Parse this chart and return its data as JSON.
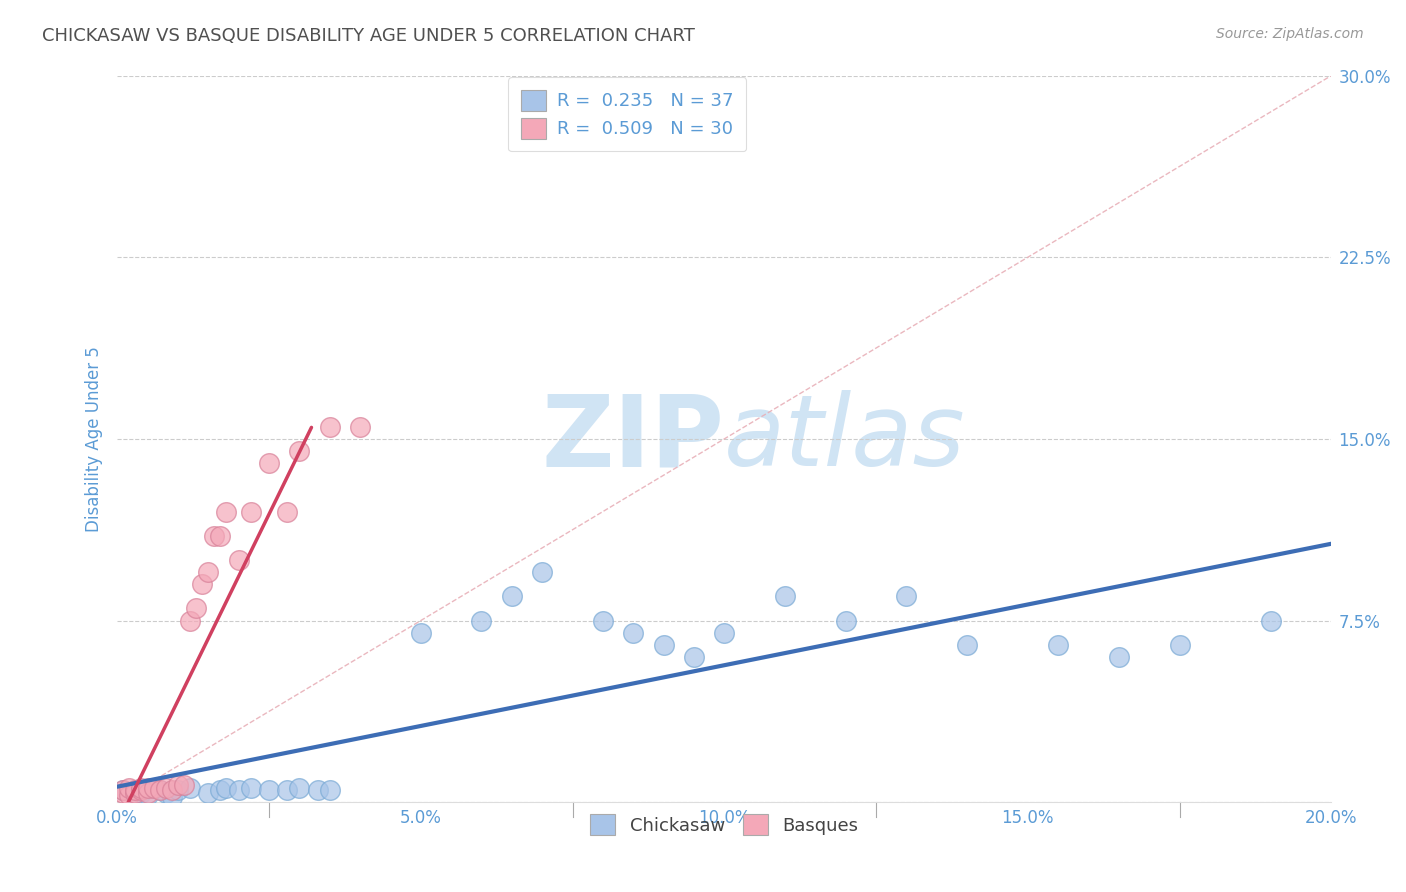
{
  "title": "CHICKASAW VS BASQUE DISABILITY AGE UNDER 5 CORRELATION CHART",
  "source_text": "Source: ZipAtlas.com",
  "ylabel": "Disability Age Under 5",
  "xlim": [
    0.0,
    0.2
  ],
  "ylim": [
    0.0,
    0.3
  ],
  "xticks": [
    0.0,
    0.05,
    0.1,
    0.15,
    0.2
  ],
  "xtick_labels": [
    "0.0%",
    "5.0%",
    "10.0%",
    "15.0%",
    "20.0%"
  ],
  "yticks": [
    0.0,
    0.075,
    0.15,
    0.225,
    0.3
  ],
  "ytick_labels": [
    "",
    "7.5%",
    "15.0%",
    "22.5%",
    "30.0%"
  ],
  "chickasaw_R": 0.235,
  "chickasaw_N": 37,
  "basques_R": 0.509,
  "basques_N": 30,
  "chickasaw_color": "#a8c4e8",
  "basques_color": "#f4a8b8",
  "trendline_chickasaw_color": "#3d6db5",
  "trendline_basques_color": "#d04060",
  "diag_line_color": "#e8b0b8",
  "background_color": "#ffffff",
  "grid_color": "#cccccc",
  "title_color": "#505050",
  "axis_label_color": "#5b9bd5",
  "tick_label_color": "#5b9bd5",
  "legend_text_color": "#5b9bd5",
  "watermark_color": "#d0e4f4",
  "chickasaw_x": [
    0.001,
    0.003,
    0.004,
    0.005,
    0.006,
    0.007,
    0.008,
    0.009,
    0.01,
    0.012,
    0.015,
    0.017,
    0.018,
    0.02,
    0.022,
    0.025,
    0.028,
    0.03,
    0.033,
    0.035,
    0.05,
    0.06,
    0.065,
    0.07,
    0.08,
    0.085,
    0.09,
    0.095,
    0.1,
    0.11,
    0.12,
    0.13,
    0.14,
    0.155,
    0.165,
    0.175,
    0.19
  ],
  "chickasaw_y": [
    0.005,
    0.003,
    0.004,
    0.003,
    0.006,
    0.005,
    0.004,
    0.002,
    0.005,
    0.006,
    0.004,
    0.005,
    0.006,
    0.005,
    0.006,
    0.005,
    0.005,
    0.006,
    0.005,
    0.005,
    0.07,
    0.075,
    0.085,
    0.095,
    0.075,
    0.07,
    0.065,
    0.06,
    0.07,
    0.085,
    0.075,
    0.085,
    0.065,
    0.065,
    0.06,
    0.065,
    0.075
  ],
  "basques_x": [
    0.001,
    0.001,
    0.002,
    0.002,
    0.003,
    0.003,
    0.004,
    0.004,
    0.005,
    0.005,
    0.006,
    0.007,
    0.008,
    0.009,
    0.01,
    0.011,
    0.012,
    0.013,
    0.014,
    0.015,
    0.016,
    0.017,
    0.018,
    0.02,
    0.022,
    0.025,
    0.028,
    0.03,
    0.035,
    0.04
  ],
  "basques_y": [
    0.004,
    0.005,
    0.003,
    0.006,
    0.004,
    0.005,
    0.005,
    0.006,
    0.004,
    0.006,
    0.006,
    0.005,
    0.006,
    0.005,
    0.007,
    0.007,
    0.075,
    0.08,
    0.09,
    0.095,
    0.11,
    0.11,
    0.12,
    0.1,
    0.12,
    0.14,
    0.12,
    0.145,
    0.155,
    0.155
  ]
}
